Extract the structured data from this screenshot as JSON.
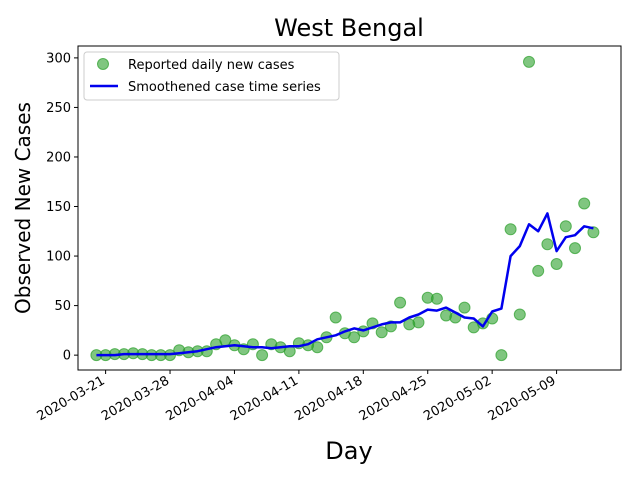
{
  "chart_data": {
    "type": "scatter",
    "title": "West Bengal",
    "xlabel": "Day",
    "ylabel": "Observed New Cases",
    "x_ticks": [
      "2020-03-21",
      "2020-03-28",
      "2020-04-04",
      "2020-04-11",
      "2020-04-18",
      "2020-04-25",
      "2020-05-02",
      "2020-05-09"
    ],
    "y_ticks": [
      0,
      50,
      100,
      150,
      200,
      250,
      300
    ],
    "xlim": [
      "2020-03-18",
      "2020-05-16"
    ],
    "ylim": [
      -15,
      312
    ],
    "grid": false,
    "legend_position": "top-left",
    "series": [
      {
        "name": "Reported daily new cases",
        "kind": "scatter",
        "color": "#2ca02c",
        "points": [
          [
            "2020-03-20",
            0
          ],
          [
            "2020-03-21",
            0
          ],
          [
            "2020-03-22",
            1
          ],
          [
            "2020-03-23",
            1
          ],
          [
            "2020-03-24",
            2
          ],
          [
            "2020-03-25",
            1
          ],
          [
            "2020-03-26",
            0
          ],
          [
            "2020-03-27",
            0
          ],
          [
            "2020-03-28",
            0
          ],
          [
            "2020-03-29",
            5
          ],
          [
            "2020-03-30",
            3
          ],
          [
            "2020-03-31",
            4
          ],
          [
            "2020-04-01",
            4
          ],
          [
            "2020-04-02",
            11
          ],
          [
            "2020-04-03",
            15
          ],
          [
            "2020-04-04",
            10
          ],
          [
            "2020-04-05",
            6
          ],
          [
            "2020-04-06",
            11
          ],
          [
            "2020-04-07",
            0
          ],
          [
            "2020-04-08",
            11
          ],
          [
            "2020-04-09",
            8
          ],
          [
            "2020-04-10",
            4
          ],
          [
            "2020-04-11",
            12
          ],
          [
            "2020-04-12",
            10
          ],
          [
            "2020-04-13",
            8
          ],
          [
            "2020-04-14",
            18
          ],
          [
            "2020-04-15",
            38
          ],
          [
            "2020-04-16",
            22
          ],
          [
            "2020-04-17",
            18
          ],
          [
            "2020-04-18",
            24
          ],
          [
            "2020-04-19",
            32
          ],
          [
            "2020-04-20",
            23
          ],
          [
            "2020-04-21",
            29
          ],
          [
            "2020-04-22",
            53
          ],
          [
            "2020-04-23",
            31
          ],
          [
            "2020-04-24",
            33
          ],
          [
            "2020-04-25",
            58
          ],
          [
            "2020-04-26",
            57
          ],
          [
            "2020-04-27",
            40
          ],
          [
            "2020-04-28",
            38
          ],
          [
            "2020-04-29",
            48
          ],
          [
            "2020-04-30",
            28
          ],
          [
            "2020-05-01",
            32
          ],
          [
            "2020-05-02",
            37
          ],
          [
            "2020-05-03",
            0
          ],
          [
            "2020-05-04",
            127
          ],
          [
            "2020-05-05",
            41
          ],
          [
            "2020-05-06",
            296
          ],
          [
            "2020-05-07",
            85
          ],
          [
            "2020-05-08",
            112
          ],
          [
            "2020-05-09",
            92
          ],
          [
            "2020-05-10",
            130
          ],
          [
            "2020-05-11",
            108
          ],
          [
            "2020-05-12",
            153
          ],
          [
            "2020-05-13",
            124
          ]
        ]
      },
      {
        "name": "Smoothened case time series",
        "kind": "line",
        "color": "#0000ee",
        "points": [
          [
            "2020-03-20",
            0
          ],
          [
            "2020-03-21",
            0
          ],
          [
            "2020-03-22",
            0
          ],
          [
            "2020-03-23",
            1
          ],
          [
            "2020-03-24",
            1
          ],
          [
            "2020-03-25",
            1
          ],
          [
            "2020-03-26",
            1
          ],
          [
            "2020-03-27",
            1
          ],
          [
            "2020-03-28",
            1
          ],
          [
            "2020-03-29",
            2
          ],
          [
            "2020-03-30",
            3
          ],
          [
            "2020-03-31",
            4
          ],
          [
            "2020-04-01",
            6
          ],
          [
            "2020-04-02",
            8
          ],
          [
            "2020-04-03",
            9
          ],
          [
            "2020-04-04",
            10
          ],
          [
            "2020-04-05",
            9
          ],
          [
            "2020-04-06",
            8
          ],
          [
            "2020-04-07",
            8
          ],
          [
            "2020-04-08",
            7
          ],
          [
            "2020-04-09",
            8
          ],
          [
            "2020-04-10",
            9
          ],
          [
            "2020-04-11",
            9
          ],
          [
            "2020-04-12",
            11
          ],
          [
            "2020-04-13",
            16
          ],
          [
            "2020-04-14",
            18
          ],
          [
            "2020-04-15",
            20
          ],
          [
            "2020-04-16",
            24
          ],
          [
            "2020-04-17",
            27
          ],
          [
            "2020-04-18",
            25
          ],
          [
            "2020-04-19",
            28
          ],
          [
            "2020-04-20",
            31
          ],
          [
            "2020-04-21",
            33
          ],
          [
            "2020-04-22",
            33
          ],
          [
            "2020-04-23",
            38
          ],
          [
            "2020-04-24",
            41
          ],
          [
            "2020-04-25",
            46
          ],
          [
            "2020-04-26",
            45
          ],
          [
            "2020-04-27",
            48
          ],
          [
            "2020-04-28",
            43
          ],
          [
            "2020-04-29",
            38
          ],
          [
            "2020-04-30",
            37
          ],
          [
            "2020-05-01",
            29
          ],
          [
            "2020-05-02",
            44
          ],
          [
            "2020-05-03",
            47
          ],
          [
            "2020-05-04",
            100
          ],
          [
            "2020-05-05",
            110
          ],
          [
            "2020-05-06",
            132
          ],
          [
            "2020-05-07",
            125
          ],
          [
            "2020-05-08",
            143
          ],
          [
            "2020-05-09",
            105
          ],
          [
            "2020-05-10",
            119
          ],
          [
            "2020-05-11",
            121
          ],
          [
            "2020-05-12",
            130
          ],
          [
            "2020-05-13",
            128
          ]
        ]
      }
    ]
  }
}
